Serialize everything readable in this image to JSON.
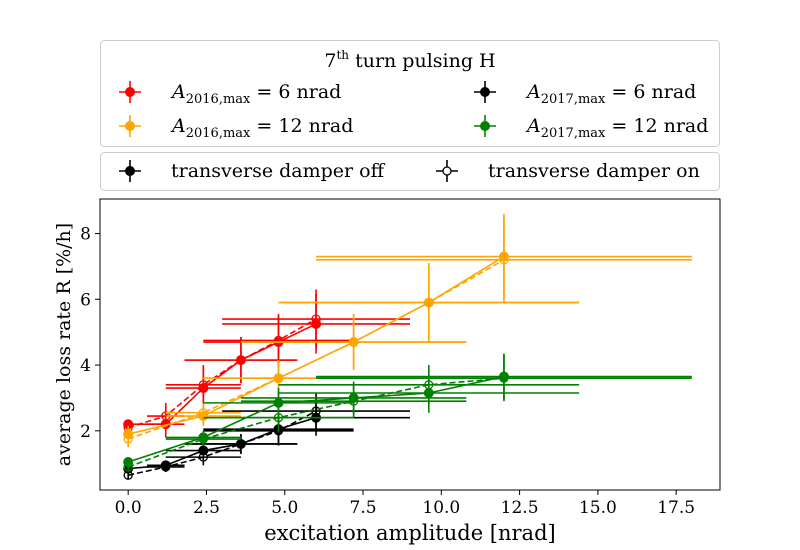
{
  "chart_data": {
    "type": "scatter",
    "xlabel": "excitation amplitude [nrad]",
    "ylabel": "average loss rate R [%/h]",
    "xlim": [
      -0.9,
      18.9
    ],
    "ylim": [
      0.2,
      9.05
    ],
    "xticks": [
      0.0,
      2.5,
      5.0,
      7.5,
      10.0,
      12.5,
      15.0,
      17.5
    ],
    "xtick_labels": [
      "0.0",
      "2.5",
      "5.0",
      "7.5",
      "10.0",
      "12.5",
      "15.0",
      "17.5"
    ],
    "yticks": [
      2,
      4,
      6,
      8
    ],
    "ytick_labels": [
      "2",
      "4",
      "6",
      "8"
    ],
    "legend1": {
      "title_main": "7",
      "title_sup": "th",
      "title_rest": " turn pulsing H",
      "placement": "above plot",
      "entries": [
        {
          "sym": "A",
          "sub": "2016,max",
          "rest": " = 6 nrad",
          "color": "#ff0000"
        },
        {
          "sym": "A",
          "sub": "2017,max",
          "rest": " = 6 nrad",
          "color": "#000000"
        },
        {
          "sym": "A",
          "sub": "2016,max",
          "rest": " = 12 nrad",
          "color": "#ffa500"
        },
        {
          "sym": "A",
          "sub": "2017,max",
          "rest": " = 12 nrad",
          "color": "#008000"
        }
      ]
    },
    "legend2": {
      "placement": "above plot",
      "entries": [
        {
          "label": "transverse damper off",
          "marker": "filled"
        },
        {
          "label": "transverse damper on",
          "marker": "open"
        }
      ]
    },
    "series": [
      {
        "legend_index": 0,
        "color": "#ff0000",
        "damper": "off",
        "marker": "filled",
        "line": "solid",
        "points": [
          {
            "x": 0,
            "y": 2.2,
            "xerr": 0,
            "yerr": 0.1
          },
          {
            "x": 1.2,
            "y": 2.2,
            "xerr": 0.6,
            "yerr": 0.4
          },
          {
            "x": 2.4,
            "y": 3.3,
            "xerr": 1.2,
            "yerr": 0.6
          },
          {
            "x": 3.6,
            "y": 4.15,
            "xerr": 1.8,
            "yerr": 0.7
          },
          {
            "x": 4.8,
            "y": 4.7,
            "xerr": 2.4,
            "yerr": 0.8
          },
          {
            "x": 6.0,
            "y": 5.25,
            "xerr": 3.0,
            "yerr": 0.9
          }
        ]
      },
      {
        "legend_index": 0,
        "color": "#ff0000",
        "damper": "on",
        "marker": "open",
        "line": "dashed",
        "points": [
          {
            "x": 0,
            "y": 2.1,
            "xerr": 0,
            "yerr": 0.1
          },
          {
            "x": 1.2,
            "y": 2.45,
            "xerr": 0.6,
            "yerr": 0.4
          },
          {
            "x": 2.4,
            "y": 3.4,
            "xerr": 1.2,
            "yerr": 0.6
          },
          {
            "x": 3.6,
            "y": 4.15,
            "xerr": 1.8,
            "yerr": 0.7
          },
          {
            "x": 4.8,
            "y": 4.75,
            "xerr": 2.4,
            "yerr": 0.8
          },
          {
            "x": 6.0,
            "y": 5.4,
            "xerr": 3.0,
            "yerr": 0.9
          }
        ]
      },
      {
        "legend_index": 2,
        "color": "#ffa500",
        "damper": "off",
        "marker": "filled",
        "line": "solid",
        "points": [
          {
            "x": 0,
            "y": 1.9,
            "xerr": 0,
            "yerr": 0.25
          },
          {
            "x": 2.4,
            "y": 2.45,
            "xerr": 1.2,
            "yerr": 0.3
          },
          {
            "x": 4.8,
            "y": 3.6,
            "xerr": 2.4,
            "yerr": 0.55
          },
          {
            "x": 7.2,
            "y": 4.7,
            "xerr": 3.6,
            "yerr": 0.85
          },
          {
            "x": 9.6,
            "y": 5.9,
            "xerr": 4.8,
            "yerr": 1.2
          },
          {
            "x": 12.0,
            "y": 7.3,
            "xerr": 6.0,
            "yerr": 1.3
          }
        ]
      },
      {
        "legend_index": 2,
        "color": "#ffa500",
        "damper": "on",
        "marker": "open",
        "line": "dashed",
        "points": [
          {
            "x": 0,
            "y": 1.75,
            "xerr": 0,
            "yerr": 0.25
          },
          {
            "x": 2.4,
            "y": 2.55,
            "xerr": 1.2,
            "yerr": 0.3
          },
          {
            "x": 4.8,
            "y": 3.6,
            "xerr": 2.4,
            "yerr": 0.55
          },
          {
            "x": 7.2,
            "y": 4.7,
            "xerr": 3.6,
            "yerr": 0.85
          },
          {
            "x": 9.6,
            "y": 5.9,
            "xerr": 4.8,
            "yerr": 1.2
          },
          {
            "x": 12.0,
            "y": 7.2,
            "xerr": 6.0,
            "yerr": 1.3
          }
        ]
      },
      {
        "legend_index": 1,
        "color": "#000000",
        "damper": "off",
        "marker": "filled",
        "line": "solid",
        "points": [
          {
            "x": 0,
            "y": 0.85,
            "xerr": 0,
            "yerr": 0.1
          },
          {
            "x": 1.2,
            "y": 0.95,
            "xerr": 0.6,
            "yerr": 0.15
          },
          {
            "x": 2.4,
            "y": 1.4,
            "xerr": 1.2,
            "yerr": 0.25
          },
          {
            "x": 3.6,
            "y": 1.6,
            "xerr": 1.8,
            "yerr": 0.3
          },
          {
            "x": 4.8,
            "y": 2.05,
            "xerr": 2.4,
            "yerr": 0.45
          },
          {
            "x": 6.0,
            "y": 2.4,
            "xerr": 3.0,
            "yerr": 0.55
          }
        ]
      },
      {
        "legend_index": 1,
        "color": "#000000",
        "damper": "on",
        "marker": "open",
        "line": "dashed",
        "points": [
          {
            "x": 0,
            "y": 0.65,
            "xerr": 0,
            "yerr": 0.1
          },
          {
            "x": 1.2,
            "y": 0.9,
            "xerr": 0.6,
            "yerr": 0.15
          },
          {
            "x": 2.4,
            "y": 1.2,
            "xerr": 1.2,
            "yerr": 0.25
          },
          {
            "x": 3.6,
            "y": 1.6,
            "xerr": 1.8,
            "yerr": 0.3
          },
          {
            "x": 4.8,
            "y": 2.0,
            "xerr": 2.4,
            "yerr": 0.45
          },
          {
            "x": 6.0,
            "y": 2.6,
            "xerr": 3.0,
            "yerr": 0.55
          }
        ]
      },
      {
        "legend_index": 3,
        "color": "#008000",
        "damper": "off",
        "marker": "filled",
        "line": "solid",
        "points": [
          {
            "x": 0,
            "y": 1.05,
            "xerr": 0,
            "yerr": 0.1
          },
          {
            "x": 2.4,
            "y": 1.8,
            "xerr": 1.2,
            "yerr": 0.2
          },
          {
            "x": 4.8,
            "y": 2.85,
            "xerr": 2.4,
            "yerr": 0.45
          },
          {
            "x": 7.2,
            "y": 3.0,
            "xerr": 3.6,
            "yerr": 0.5
          },
          {
            "x": 9.6,
            "y": 3.15,
            "xerr": 4.8,
            "yerr": 0.6
          },
          {
            "x": 12.0,
            "y": 3.65,
            "xerr": 6.0,
            "yerr": 0.7
          }
        ]
      },
      {
        "legend_index": 3,
        "color": "#008000",
        "damper": "on",
        "marker": "open",
        "line": "dashed",
        "points": [
          {
            "x": 0,
            "y": 0.9,
            "xerr": 0,
            "yerr": 0.1
          },
          {
            "x": 2.4,
            "y": 1.75,
            "xerr": 1.2,
            "yerr": 0.2
          },
          {
            "x": 4.8,
            "y": 2.4,
            "xerr": 2.4,
            "yerr": 0.45
          },
          {
            "x": 7.2,
            "y": 2.9,
            "xerr": 3.6,
            "yerr": 0.5
          },
          {
            "x": 9.6,
            "y": 3.4,
            "xerr": 4.8,
            "yerr": 0.6
          },
          {
            "x": 12.0,
            "y": 3.6,
            "xerr": 6.0,
            "yerr": 0.7
          }
        ]
      }
    ]
  }
}
